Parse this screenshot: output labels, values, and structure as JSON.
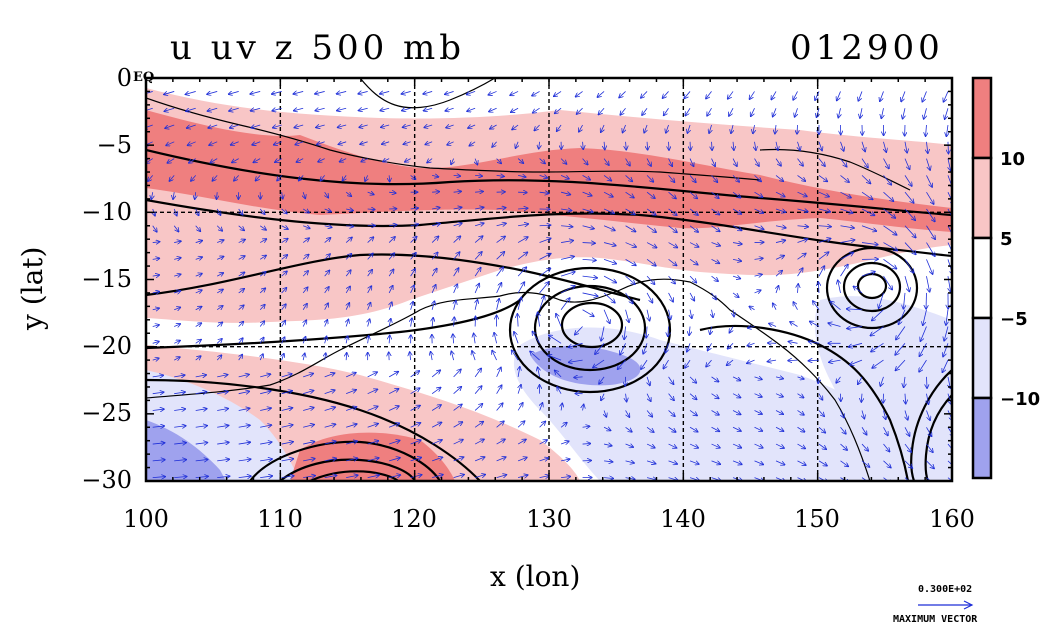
{
  "title": {
    "variables": "u uv z 500 mb",
    "date": "012900"
  },
  "axes": {
    "xlabel": "x (lon)",
    "ylabel": "y (lat)",
    "x_ticks": [
      "100",
      "110",
      "120",
      "130",
      "140",
      "150",
      "160"
    ],
    "y_ticks": [
      "0",
      "−5",
      "−10",
      "−15",
      "−20",
      "−25",
      "−30"
    ],
    "x_range": [
      100,
      160
    ],
    "y_range": [
      -30,
      0
    ],
    "eq_label": "EQ",
    "grid": "dashed"
  },
  "colorbar": {
    "levels": [
      -15,
      -10,
      -5,
      5,
      10,
      15
    ],
    "labels": [
      "10",
      "5",
      "−5",
      "−10"
    ],
    "colors": [
      "#ef7f7f",
      "#f8c6c6",
      "#ffffff",
      "#e2e4fb",
      "#9fa2ee"
    ]
  },
  "legend": {
    "max_vector_value": "0.300E+02",
    "max_vector_label": "MAXIMUM VECTOR"
  },
  "colors": {
    "strong_positive": "#ef7f7f",
    "weak_positive": "#f8c6c6",
    "weak_negative": "#e2e4fb",
    "strong_negative": "#9fa2ee",
    "wind_vectors": "#1f2fd8",
    "u_contour": "#e00000",
    "height_contour": "#000000"
  }
}
